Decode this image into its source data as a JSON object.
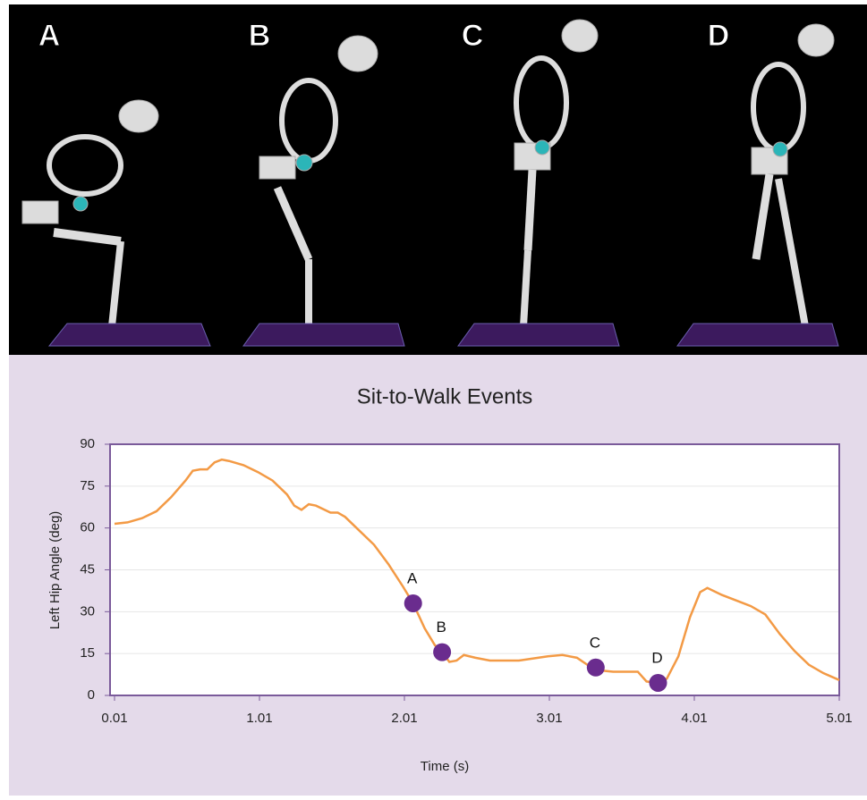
{
  "panels": [
    "A",
    "B",
    "C",
    "D"
  ],
  "chart_data": {
    "type": "line",
    "title": "Sit-to-Walk Events",
    "xlabel": "Time (s)",
    "ylabel": "Left Hip Angle (deg)",
    "xlim": [
      0.01,
      5.01
    ],
    "xticks": [
      0.01,
      1.01,
      2.01,
      3.01,
      4.01,
      5.01
    ],
    "ylim": [
      0,
      90
    ],
    "yticks": [
      0,
      15,
      30,
      45,
      60,
      75,
      90
    ],
    "grid": true,
    "color": "#f39a45",
    "x": [
      0.01,
      0.1,
      0.2,
      0.3,
      0.4,
      0.5,
      0.55,
      0.6,
      0.65,
      0.7,
      0.75,
      0.8,
      0.9,
      1.0,
      1.1,
      1.2,
      1.25,
      1.3,
      1.35,
      1.4,
      1.5,
      1.55,
      1.6,
      1.7,
      1.8,
      1.9,
      2.0,
      2.07,
      2.15,
      2.22,
      2.27,
      2.32,
      2.37,
      2.42,
      2.5,
      2.6,
      2.8,
      3.0,
      3.1,
      3.2,
      3.3,
      3.35,
      3.45,
      3.55,
      3.62,
      3.68,
      3.76,
      3.82,
      3.9,
      3.98,
      4.05,
      4.1,
      4.2,
      4.3,
      4.4,
      4.5,
      4.6,
      4.7,
      4.8,
      4.9,
      5.01
    ],
    "values": [
      61.5,
      62,
      63.5,
      66,
      71,
      77,
      80.5,
      81,
      81,
      83.5,
      84.5,
      84,
      82.5,
      80,
      77,
      72,
      68,
      66.5,
      68.5,
      68,
      65.5,
      65.5,
      64,
      59,
      54,
      47,
      39,
      33,
      24,
      18,
      15.5,
      12,
      12.5,
      14.5,
      13.5,
      12.5,
      12.5,
      14,
      14.5,
      13.5,
      10,
      9,
      8.5,
      8.5,
      8.5,
      5,
      4.5,
      6,
      14,
      28,
      37,
      38.5,
      36,
      34,
      32,
      29,
      22,
      16,
      11,
      8,
      5.5
    ],
    "events": {
      "color": "#6a2c8e",
      "labels": [
        "A",
        "B",
        "C",
        "D"
      ],
      "x": [
        2.07,
        2.27,
        3.33,
        3.76
      ],
      "y": [
        33,
        15.5,
        10,
        4.5
      ]
    }
  }
}
